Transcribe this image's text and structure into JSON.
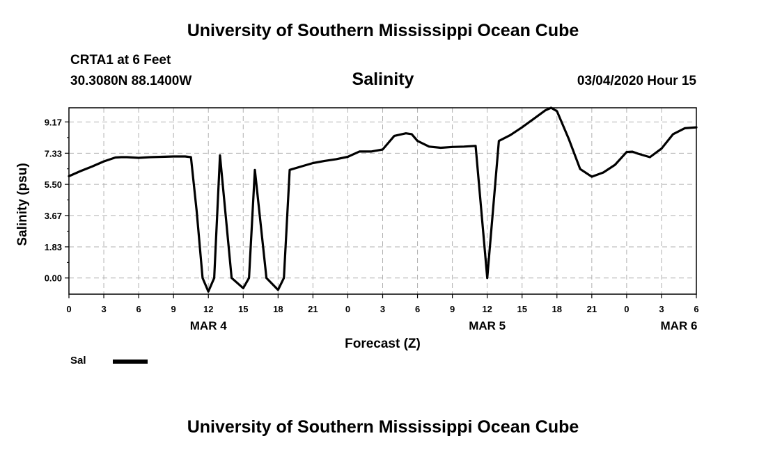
{
  "header": {
    "top_title": "University of Southern Mississippi Ocean Cube",
    "bottom_title": "University of Southern Mississippi Ocean Cube",
    "station": "CRTA1 at 6 Feet",
    "coordinates": "30.3080N 88.1400W",
    "timestamp": "03/04/2020 Hour 15"
  },
  "chart_data": {
    "type": "line",
    "title": "Salinity",
    "xlabel": "Forecast (Z)",
    "ylabel": "Salinity (psu)",
    "x_unit": "hours from 2020-03-03 00Z",
    "xlim": [
      0,
      54
    ],
    "ylim": [
      -0.95,
      10.0
    ],
    "yticks": [
      0.0,
      1.83,
      3.67,
      5.5,
      7.33,
      9.17
    ],
    "ytick_labels": [
      "0.00",
      "1.83",
      "3.67",
      "5.50",
      "7.33",
      "9.17"
    ],
    "xticks": [
      0,
      3,
      6,
      9,
      12,
      15,
      18,
      21,
      24,
      27,
      30,
      33,
      36,
      39,
      42,
      45,
      48,
      51,
      54
    ],
    "xtick_labels": [
      "0",
      "3",
      "6",
      "9",
      "12",
      "15",
      "18",
      "21",
      "0",
      "3",
      "6",
      "9",
      "12",
      "15",
      "18",
      "21",
      "0",
      "3",
      "6"
    ],
    "date_labels": [
      {
        "x": 12,
        "label": "MAR 4"
      },
      {
        "x": 36,
        "label": "MAR 5"
      },
      {
        "x": 52.5,
        "label": "MAR 6"
      }
    ],
    "grid": true,
    "legend_position": "bottom-left",
    "series": [
      {
        "name": "Sal",
        "color": "#000000",
        "x": [
          0,
          1,
          2,
          3,
          4,
          4.5,
          5,
          6,
          7,
          8,
          9,
          10,
          10.5,
          11,
          11.5,
          12,
          12.5,
          13,
          14,
          15,
          15.5,
          16,
          17,
          18,
          18.5,
          19,
          20,
          21,
          22,
          23,
          24,
          25,
          26,
          27,
          28,
          29,
          29.5,
          30,
          31,
          32,
          33,
          34,
          35,
          36,
          37,
          38,
          39,
          40,
          41,
          41.5,
          42,
          43,
          44,
          45,
          46,
          47,
          48,
          48.5,
          49,
          50,
          51,
          52,
          53,
          54
        ],
        "y": [
          5.98,
          6.28,
          6.55,
          6.85,
          7.08,
          7.1,
          7.1,
          7.06,
          7.1,
          7.12,
          7.14,
          7.14,
          7.1,
          3.9,
          0.0,
          -0.8,
          0.0,
          7.2,
          0.0,
          -0.6,
          0.0,
          6.35,
          0.0,
          -0.7,
          0.0,
          6.35,
          6.55,
          6.75,
          6.88,
          6.98,
          7.12,
          7.43,
          7.43,
          7.55,
          8.35,
          8.5,
          8.45,
          8.05,
          7.72,
          7.65,
          7.7,
          7.72,
          7.76,
          0.0,
          8.05,
          8.4,
          8.85,
          9.35,
          9.85,
          10.0,
          9.8,
          8.2,
          6.4,
          5.95,
          6.2,
          6.65,
          7.4,
          7.42,
          7.3,
          7.1,
          7.6,
          8.45,
          8.8,
          8.85
        ]
      }
    ]
  }
}
